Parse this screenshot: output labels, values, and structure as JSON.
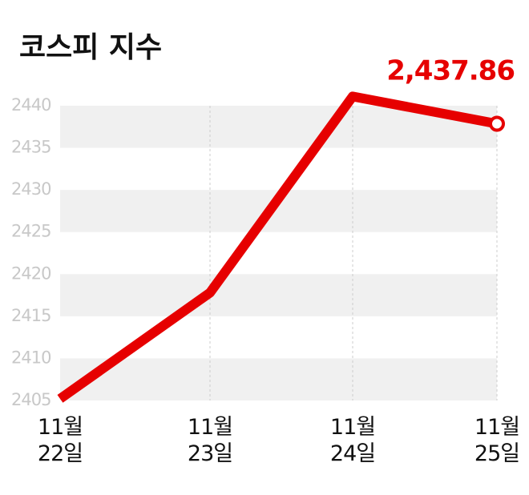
{
  "chart_data": {
    "type": "line",
    "title": "코스피 지수",
    "categories": [
      "11월\n22일",
      "11월\n23일",
      "11월\n24일",
      "11월\n25일"
    ],
    "series": [
      {
        "name": "코스피",
        "color": "#e60000",
        "values": [
          2405.2,
          2417.8,
          2441.1,
          2437.86
        ],
        "value_labels": [
          null,
          null,
          null,
          "2,437.86"
        ]
      }
    ],
    "ylim": [
      2405,
      2442
    ],
    "yticks": [
      2405,
      2410,
      2415,
      2420,
      2425,
      2430,
      2435,
      2440
    ],
    "grid": true
  }
}
